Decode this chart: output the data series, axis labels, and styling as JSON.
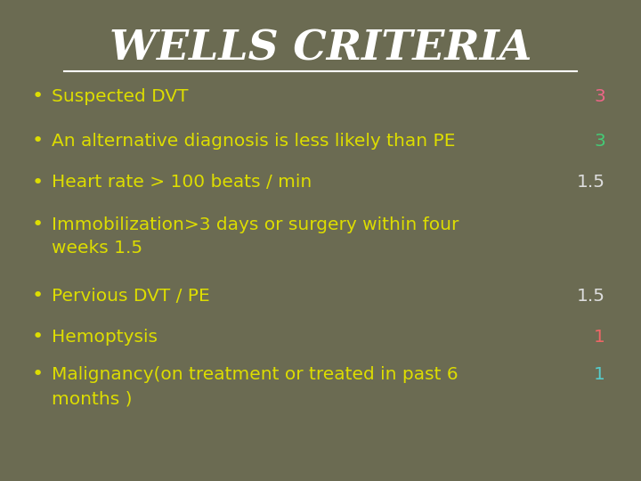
{
  "background_color": "#6b6b52",
  "title": "WELLS CRITERIA",
  "title_color": "#ffffff",
  "title_fontsize": 34,
  "bullet_color": "#dddd00",
  "bullet_char": "•",
  "items": [
    {
      "line1": "Suspected DVT",
      "line2": "",
      "score": "3",
      "score_color": "#ee6688"
    },
    {
      "line1": "An alternative diagnosis is less likely than PE",
      "line2": "",
      "score": "3",
      "score_color": "#44cc77"
    },
    {
      "line1": "Heart rate > 100 beats / min",
      "line2": "",
      "score": "1.5",
      "score_color": "#dddddd"
    },
    {
      "line1": "Immobilization>3 days or surgery within four",
      "line2": "weeks 1.5",
      "score": "",
      "score_color": "#dddd00"
    },
    {
      "line1": "Pervious DVT / PE",
      "line2": "",
      "score": "1.5",
      "score_color": "#dddddd"
    },
    {
      "line1": "Hemoptysis",
      "line2": "",
      "score": "1",
      "score_color": "#ee6666"
    },
    {
      "line1": "Malignancy(on treatment or treated in past 6",
      "line2": "months )",
      "score": "1",
      "score_color": "#55cccc"
    }
  ],
  "figwidth": 7.2,
  "figheight": 5.4,
  "dpi": 100
}
